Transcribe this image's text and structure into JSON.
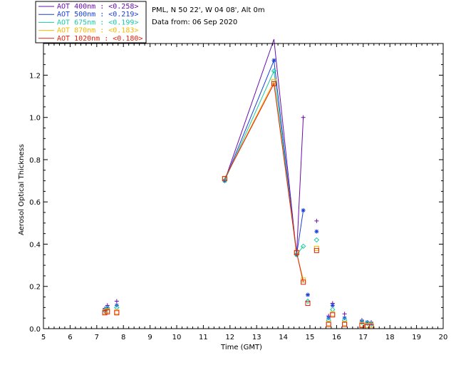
{
  "chart_data": {
    "type": "scatter",
    "xlabel": "Time (GMT)",
    "ylabel": "Aerosol Optical Thickness",
    "xlim": [
      5,
      20
    ],
    "ylim": [
      0,
      1.35
    ],
    "xticks": [
      "5",
      "6",
      "7",
      "8",
      "9",
      "10",
      "11",
      "12",
      "13",
      "14",
      "15",
      "16",
      "17",
      "18",
      "19",
      "20"
    ],
    "yticks": [
      "0.0",
      "0.2",
      "0.4",
      "0.6",
      "0.8",
      "1.0",
      "1.2"
    ],
    "info_lines": [
      "PML, N 50 22', W 04 08', Alt 0m",
      "Data from: 06 Sep 2020"
    ],
    "legend_position": "top-left (outside plot)",
    "series": [
      {
        "name": "AOT  400nm : <0.258>",
        "color": "#6a0dad",
        "marker": "plus",
        "line_segment": [
          3,
          6
        ],
        "points": [
          [
            7.3,
            0.095
          ],
          [
            7.4,
            0.11
          ],
          [
            7.75,
            0.13
          ],
          [
            11.8,
            0.7
          ],
          [
            13.65,
            1.37
          ],
          [
            14.5,
            0.35
          ],
          [
            14.75,
            1.0
          ],
          [
            14.92,
            0.16
          ],
          [
            15.25,
            0.51
          ],
          [
            15.7,
            0.06
          ],
          [
            15.85,
            0.12
          ],
          [
            16.3,
            0.07
          ],
          [
            16.95,
            0.04
          ],
          [
            17.15,
            0.03
          ],
          [
            17.3,
            0.03
          ]
        ]
      },
      {
        "name": "AOT  500nm : <0.219>",
        "color": "#1a3fd8",
        "marker": "asterisk",
        "line_segment": [
          3,
          6
        ],
        "points": [
          [
            7.3,
            0.09
          ],
          [
            7.4,
            0.1
          ],
          [
            7.75,
            0.11
          ],
          [
            11.8,
            0.7
          ],
          [
            13.65,
            1.27
          ],
          [
            14.5,
            0.35
          ],
          [
            14.75,
            0.56
          ],
          [
            14.92,
            0.16
          ],
          [
            15.25,
            0.46
          ],
          [
            15.7,
            0.05
          ],
          [
            15.85,
            0.11
          ],
          [
            16.3,
            0.05
          ],
          [
            16.95,
            0.035
          ],
          [
            17.15,
            0.03
          ],
          [
            17.3,
            0.025
          ]
        ]
      },
      {
        "name": "AOT  675nm : <0.199>",
        "color": "#19c8a6",
        "marker": "diamond",
        "line_segment": [
          3,
          6
        ],
        "points": [
          [
            7.3,
            0.085
          ],
          [
            7.4,
            0.095
          ],
          [
            7.75,
            0.1
          ],
          [
            11.8,
            0.7
          ],
          [
            13.65,
            1.22
          ],
          [
            14.5,
            0.35
          ],
          [
            14.75,
            0.39
          ],
          [
            14.92,
            0.13
          ],
          [
            15.25,
            0.42
          ],
          [
            15.7,
            0.04
          ],
          [
            15.85,
            0.09
          ],
          [
            16.3,
            0.04
          ],
          [
            16.95,
            0.03
          ],
          [
            17.15,
            0.025
          ],
          [
            17.3,
            0.02
          ]
        ]
      },
      {
        "name": "AOT  870nm : <0.183>",
        "color": "#f5b700",
        "marker": "square",
        "line_segment": [
          3,
          6
        ],
        "points": [
          [
            7.3,
            0.08
          ],
          [
            7.4,
            0.085
          ],
          [
            7.75,
            0.08
          ],
          [
            11.8,
            0.71
          ],
          [
            13.65,
            1.17
          ],
          [
            14.5,
            0.36
          ],
          [
            14.75,
            0.23
          ],
          [
            14.92,
            0.12
          ],
          [
            15.25,
            0.38
          ],
          [
            15.7,
            0.025
          ],
          [
            15.85,
            0.07
          ],
          [
            16.3,
            0.025
          ],
          [
            16.95,
            0.02
          ],
          [
            17.15,
            0.015
          ],
          [
            17.3,
            0.015
          ]
        ]
      },
      {
        "name": "AOT 1020nm : <0.180>",
        "color": "#e0200e",
        "marker": "square",
        "line_segment": [
          3,
          6
        ],
        "points": [
          [
            7.3,
            0.075
          ],
          [
            7.4,
            0.08
          ],
          [
            7.75,
            0.075
          ],
          [
            11.8,
            0.71
          ],
          [
            13.65,
            1.16
          ],
          [
            14.5,
            0.36
          ],
          [
            14.75,
            0.22
          ],
          [
            14.92,
            0.12
          ],
          [
            15.25,
            0.37
          ],
          [
            15.7,
            0.02
          ],
          [
            15.85,
            0.065
          ],
          [
            16.3,
            0.02
          ],
          [
            16.95,
            0.015
          ],
          [
            17.15,
            0.01
          ],
          [
            17.3,
            0.01
          ]
        ]
      }
    ]
  }
}
